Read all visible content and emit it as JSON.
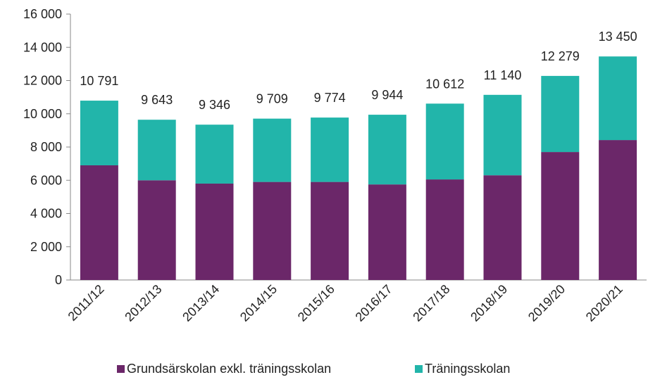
{
  "chart_data": {
    "type": "stacked_bar",
    "categories": [
      "2011/12",
      "2012/13",
      "2013/14",
      "2014/15",
      "2015/16",
      "2016/17",
      "2017/18",
      "2018/19",
      "2019/20",
      "2020/21"
    ],
    "series": [
      {
        "name": "Grundsärskolan exkl. träningsskolan",
        "color": "#6b2769",
        "values": [
          6900,
          6000,
          5800,
          5900,
          5900,
          5750,
          6050,
          6300,
          7700,
          8420
        ]
      },
      {
        "name": "Träningsskolan",
        "color": "#22b5aa",
        "values": [
          3891,
          3643,
          3546,
          3809,
          3874,
          4194,
          4562,
          4840,
          4579,
          5030
        ]
      }
    ],
    "totals": [
      10791,
      9643,
      9346,
      9709,
      9774,
      9944,
      10612,
      11140,
      12279,
      13450
    ],
    "total_labels": [
      "10 791",
      "9 643",
      "9 346",
      "9 709",
      "9 774",
      "9 944",
      "10 612",
      "11 140",
      "12 279",
      "13 450"
    ],
    "ylim": [
      0,
      16000
    ],
    "yticks": [
      0,
      {
        "value": 2000,
        "label": "2 000"
      },
      {
        "value": 4000,
        "label": "4 000"
      },
      {
        "value": 6000,
        "label": "6 000"
      },
      {
        "value": 8000,
        "label": "8 000"
      },
      {
        "value": 10000,
        "label": "10 000"
      },
      {
        "value": 12000,
        "label": "12 000"
      },
      {
        "value": 14000,
        "label": "14 000"
      },
      {
        "value": 16000,
        "label": "16 000"
      }
    ],
    "grid": false,
    "legend": "bottom"
  }
}
